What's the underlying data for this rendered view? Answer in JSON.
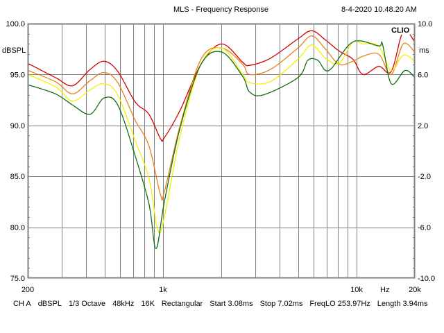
{
  "header": {
    "title": "MLS - Frequency Response",
    "timestamp": "8-4-2020 10.48.20 AM",
    "logo": "CLIO"
  },
  "footer": {
    "items": [
      "CH A",
      "dBSPL",
      "1/3 Octave",
      "48kHz",
      "16K",
      "Rectangular",
      "Start 3.08ms",
      "Stop 7.02ms",
      "FreqLO 253.97Hz",
      "Length 3.94ms"
    ]
  },
  "chart_data": {
    "type": "line",
    "title": "MLS - Frequency Response",
    "xscale": "log",
    "xlim": [
      200,
      20000
    ],
    "ylim": [
      75,
      100
    ],
    "y2lim": [
      -10,
      10
    ],
    "ylabel": "dBSPL",
    "y2label": "ms",
    "xlabel": "Hz",
    "grid": true,
    "x_ticks": [
      {
        "v": 200,
        "label": "200"
      },
      {
        "v": 1000,
        "label": "1k"
      },
      {
        "v": 10000,
        "label": "10k"
      },
      {
        "v": 14000,
        "label": "Hz"
      },
      {
        "v": 20000,
        "label": "20k"
      }
    ],
    "y_ticks": [
      {
        "v": 100,
        "label": "100.0"
      },
      {
        "v": 95,
        "label": "95.0"
      },
      {
        "v": 90,
        "label": "90.0"
      },
      {
        "v": 85,
        "label": "85.0"
      },
      {
        "v": 80,
        "label": "80.0"
      },
      {
        "v": 75,
        "label": "75.0"
      }
    ],
    "y2_ticks": [
      {
        "v": 10,
        "label": "10.0"
      },
      {
        "v": 6,
        "label": "6.0"
      },
      {
        "v": 2,
        "label": "2.0"
      },
      {
        "v": -2,
        "label": "-2.0"
      },
      {
        "v": -6,
        "label": "-6.0"
      },
      {
        "v": -10,
        "label": "-10.0"
      }
    ],
    "series": [
      {
        "name": "red",
        "color": "#d40000",
        "points": [
          [
            200,
            96.1
          ],
          [
            278,
            94.7
          ],
          [
            341,
            93.9
          ],
          [
            420,
            95.5
          ],
          [
            496,
            96.3
          ],
          [
            584,
            95.3
          ],
          [
            718,
            92.3
          ],
          [
            846,
            91.1
          ],
          [
            970,
            88.7
          ],
          [
            1016,
            88.8
          ],
          [
            1226,
            91.5
          ],
          [
            1570,
            96.0
          ],
          [
            2012,
            98.0
          ],
          [
            2580,
            96.2
          ],
          [
            2797,
            95.9
          ],
          [
            3590,
            96.6
          ],
          [
            4980,
            98.5
          ],
          [
            5860,
            99.3
          ],
          [
            6900,
            98.4
          ],
          [
            8130,
            97.3
          ],
          [
            9570,
            96.5
          ],
          [
            10800,
            95.0
          ],
          [
            13000,
            95.8
          ],
          [
            15100,
            95.3
          ],
          [
            17400,
            99.2
          ],
          [
            20000,
            98.2
          ]
        ]
      },
      {
        "name": "orange",
        "color": "#e8801c",
        "points": [
          [
            200,
            95.4
          ],
          [
            278,
            94.3
          ],
          [
            341,
            93.1
          ],
          [
            420,
            94.4
          ],
          [
            496,
            95.2
          ],
          [
            584,
            94.2
          ],
          [
            718,
            90.5
          ],
          [
            846,
            88.0
          ],
          [
            970,
            83.2
          ],
          [
            1016,
            83.5
          ],
          [
            1226,
            90.0
          ],
          [
            1570,
            96.5
          ],
          [
            2012,
            97.6
          ],
          [
            2580,
            96.0
          ],
          [
            2797,
            95.0
          ],
          [
            3590,
            95.5
          ],
          [
            4980,
            97.6
          ],
          [
            5860,
            98.8
          ],
          [
            6900,
            97.5
          ],
          [
            8130,
            96.0
          ],
          [
            9570,
            96.3
          ],
          [
            10800,
            96.8
          ],
          [
            13000,
            97.0
          ],
          [
            15100,
            95.0
          ],
          [
            17400,
            98.0
          ],
          [
            20000,
            97.2
          ]
        ]
      },
      {
        "name": "yellow",
        "color": "#f5f000",
        "points": [
          [
            200,
            95.0
          ],
          [
            278,
            93.8
          ],
          [
            341,
            92.4
          ],
          [
            420,
            93.5
          ],
          [
            496,
            94.1
          ],
          [
            584,
            93.0
          ],
          [
            718,
            88.5
          ],
          [
            846,
            84.8
          ],
          [
            940,
            79.7
          ],
          [
            1016,
            81.0
          ],
          [
            1226,
            89.0
          ],
          [
            1570,
            96.0
          ],
          [
            2012,
            97.6
          ],
          [
            2580,
            95.0
          ],
          [
            2797,
            94.2
          ],
          [
            3590,
            94.3
          ],
          [
            4980,
            96.5
          ],
          [
            5860,
            97.9
          ],
          [
            6900,
            96.6
          ],
          [
            8130,
            96.1
          ],
          [
            9570,
            98.2
          ],
          [
            10800,
            98.0
          ],
          [
            13000,
            97.8
          ],
          [
            15100,
            95.4
          ],
          [
            17400,
            96.9
          ],
          [
            20000,
            96.3
          ]
        ]
      },
      {
        "name": "green",
        "color": "#107010",
        "points": [
          [
            200,
            94.0
          ],
          [
            278,
            93.1
          ],
          [
            341,
            92.0
          ],
          [
            420,
            91.1
          ],
          [
            496,
            92.7
          ],
          [
            584,
            92.0
          ],
          [
            718,
            87.0
          ],
          [
            846,
            82.3
          ],
          [
            920,
            77.9
          ],
          [
            1016,
            82.5
          ],
          [
            1226,
            89.8
          ],
          [
            1570,
            96.0
          ],
          [
            2012,
            97.2
          ],
          [
            2580,
            94.8
          ],
          [
            2797,
            93.3
          ],
          [
            3300,
            93.0
          ],
          [
            4980,
            94.7
          ],
          [
            5600,
            96.4
          ],
          [
            6300,
            96.4
          ],
          [
            7200,
            95.4
          ],
          [
            9570,
            98.2
          ],
          [
            13000,
            97.8
          ],
          [
            13600,
            98.0
          ],
          [
            15100,
            94.1
          ],
          [
            17800,
            95.4
          ],
          [
            20000,
            94.7
          ]
        ]
      }
    ]
  }
}
